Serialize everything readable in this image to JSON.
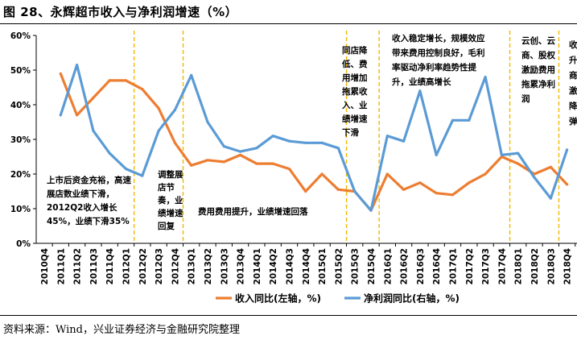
{
  "figure": {
    "title": "图 28、永辉超市收入与净利润增速（%）",
    "source": "资料来源：Wind，兴业证券经济与金融研究院整理"
  },
  "chart_data": {
    "type": "line",
    "title": "图 28、永辉超市收入与净利润增速（%）",
    "categories": [
      "2010Q4",
      "2011Q1",
      "2011Q2",
      "2011Q3",
      "2011Q4",
      "2012Q1",
      "2012Q2",
      "2012Q3",
      "2012Q4",
      "2013Q1",
      "2013Q2",
      "2013Q3",
      "2013Q4",
      "2014Q1",
      "2014Q2",
      "2014Q3",
      "2014Q4",
      "2015Q1",
      "2015Q2",
      "2015Q3",
      "2015Q4",
      "2016Q1",
      "2016Q2",
      "2016Q3",
      "2016Q4",
      "2017Q1",
      "2017Q2",
      "2017Q3",
      "2017Q4",
      "2018Q1",
      "2018Q2",
      "2018Q3",
      "2018Q4"
    ],
    "y_ticks": [
      "0%",
      "10%",
      "20%",
      "30%",
      "40%",
      "50%",
      "60%"
    ],
    "ylim": [
      0,
      60
    ],
    "series": [
      {
        "name": "收入同比(左轴，%)",
        "color": "#ED7D31",
        "values": [
          null,
          49,
          37,
          42,
          47,
          47,
          44.5,
          39,
          29,
          22.5,
          24,
          23.5,
          25.5,
          23,
          23,
          21.5,
          15,
          20,
          15.5,
          15,
          9.5,
          20,
          15.5,
          17.5,
          14.5,
          14,
          17.5,
          20,
          25,
          23,
          20,
          22,
          17
        ]
      },
      {
        "name": "净利润同比(右轴，%)",
        "color": "#5B9BD5",
        "values": [
          null,
          37,
          51.5,
          32.5,
          26,
          21.5,
          19.5,
          32.5,
          38.5,
          48.5,
          35,
          28,
          26.5,
          27.5,
          31,
          29.5,
          29,
          29,
          27.5,
          15,
          9.5,
          31,
          29.5,
          44,
          25.5,
          35.5,
          35.5,
          48,
          25.5,
          26,
          19,
          13,
          27
        ]
      }
    ],
    "dividers_after": [
      "2012Q1",
      "2012Q4",
      "2015Q2",
      "2015Q4",
      "2017Q4",
      "2018Q3"
    ],
    "annotations": [
      {
        "lines": [
          "上市后资金充裕，高速",
          "展店数业绩下滑，",
          "2012Q2收入增长",
          "45%，业绩下滑35%"
        ]
      },
      {
        "lines": [
          "调整展",
          "店节",
          "奏，业",
          "绩增速",
          "回复"
        ]
      },
      {
        "lines": [
          "费用费用提升，业绩增速回落"
        ]
      },
      {
        "lines": [
          "同店降",
          "低、费",
          "用增加",
          "拖累收",
          "入、业",
          "绩增速",
          "下滑"
        ]
      },
      {
        "lines": [
          "收入稳定增长，规模效应",
          "带来费用控制良好，毛利",
          "率驱动净利率趋势性提",
          "升，业绩高增长"
        ]
      },
      {
        "lines": [
          "云创、云",
          "商、股权",
          "激励费用",
          "拖累净利",
          "润"
        ]
      },
      {
        "lines": [
          "收",
          "升",
          "商",
          "激",
          "降",
          "弹"
        ]
      }
    ]
  }
}
